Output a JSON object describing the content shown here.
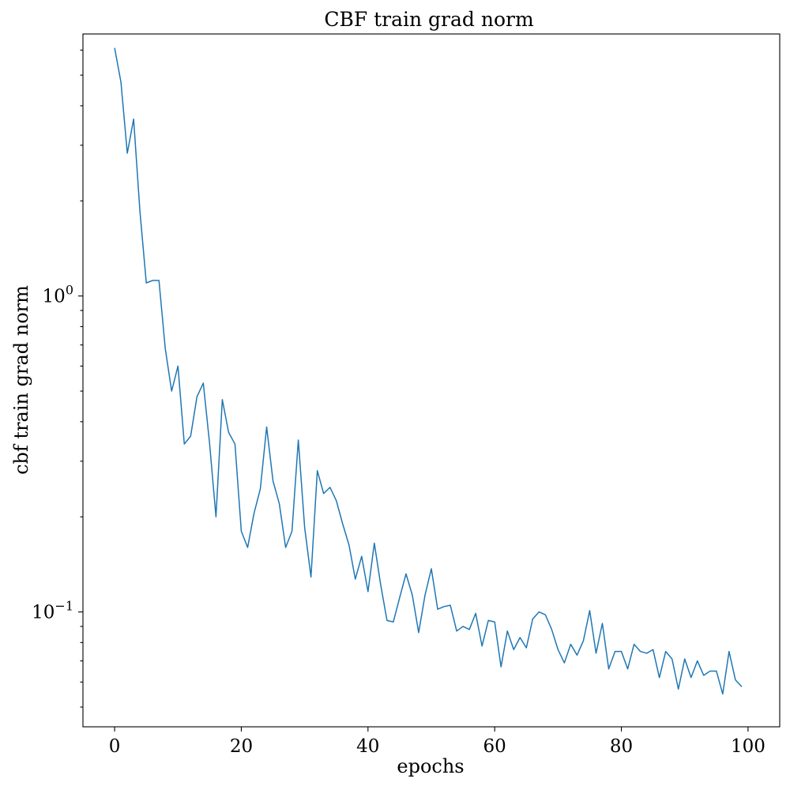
{
  "chart_data": {
    "type": "line",
    "title": "CBF train grad norm",
    "xlabel": "epochs",
    "ylabel": "cbf train grad norm",
    "xlim": [
      -5,
      105
    ],
    "ylim": [
      0.0433,
      6.75
    ],
    "yscale": "log",
    "grid": false,
    "x_ticks": [
      0,
      20,
      40,
      60,
      80,
      100
    ],
    "y_ticks": [
      {
        "value": 1.0,
        "base": "10",
        "exponent": "0"
      },
      {
        "value": 0.1,
        "base": "10",
        "exponent": "−1"
      }
    ],
    "series": [
      {
        "color": "#1f77b4",
        "x": [
          0,
          1,
          2,
          3,
          4,
          5,
          6,
          7,
          8,
          9,
          10,
          11,
          12,
          13,
          14,
          15,
          16,
          17,
          18,
          19,
          20,
          21,
          22,
          23,
          24,
          25,
          26,
          27,
          28,
          29,
          30,
          31,
          32,
          33,
          34,
          35,
          36,
          37,
          38,
          39,
          40,
          41,
          42,
          43,
          44,
          45,
          46,
          47,
          48,
          49,
          50,
          51,
          52,
          53,
          54,
          55,
          56,
          57,
          58,
          59,
          60,
          61,
          62,
          63,
          64,
          65,
          66,
          67,
          68,
          69,
          70,
          71,
          72,
          73,
          74,
          75,
          76,
          77,
          78,
          79,
          80,
          81,
          82,
          83,
          84,
          85,
          86,
          87,
          88,
          89,
          90,
          91,
          92,
          93,
          94,
          95,
          96,
          97,
          98,
          99
        ],
        "values": [
          6.1,
          4.75,
          2.83,
          3.63,
          1.85,
          1.1,
          1.12,
          1.12,
          0.68,
          0.5,
          0.6,
          0.34,
          0.36,
          0.48,
          0.53,
          0.34,
          0.2,
          0.47,
          0.37,
          0.34,
          0.18,
          0.16,
          0.205,
          0.245,
          0.385,
          0.26,
          0.22,
          0.16,
          0.18,
          0.35,
          0.185,
          0.129,
          0.28,
          0.237,
          0.248,
          0.225,
          0.19,
          0.163,
          0.127,
          0.15,
          0.116,
          0.165,
          0.122,
          0.094,
          0.093,
          0.111,
          0.132,
          0.113,
          0.086,
          0.113,
          0.137,
          0.102,
          0.104,
          0.105,
          0.087,
          0.09,
          0.088,
          0.099,
          0.078,
          0.094,
          0.093,
          0.067,
          0.087,
          0.076,
          0.083,
          0.077,
          0.095,
          0.1,
          0.098,
          0.088,
          0.076,
          0.069,
          0.079,
          0.073,
          0.081,
          0.101,
          0.074,
          0.092,
          0.066,
          0.075,
          0.075,
          0.066,
          0.079,
          0.075,
          0.074,
          0.076,
          0.062,
          0.075,
          0.071,
          0.057,
          0.071,
          0.062,
          0.07,
          0.063,
          0.065,
          0.065,
          0.055,
          0.075,
          0.061,
          0.058
        ]
      }
    ]
  }
}
